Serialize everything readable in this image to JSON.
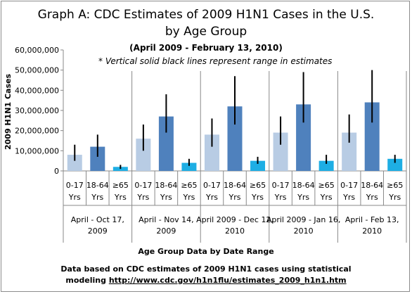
{
  "chart_data": {
    "type": "bar",
    "title": "Graph A: CDC Estimates of 2009 H1N1 Cases in the U.S.",
    "title_line2": "by Age Group",
    "subtitle": "(April 2009 - February 13, 2010)",
    "note": "* Vertical solid black lines represent range in estimates",
    "ylabel": "2009 H1N1 Cases",
    "xlabel": "Age Group Data by Date Range",
    "ylim": [
      0,
      60000000
    ],
    "yticks": [
      "0",
      "10,000,000",
      "20,000,000",
      "30,000,000",
      "40,000,000",
      "50,000,000",
      "60,000,000"
    ],
    "group_labels": [
      "April - Oct 17, 2009",
      "April - Nov 14, 2009",
      "April 2009 - Dec 12, 2010",
      "April 2009 - Jan 16, 2010",
      "April - Feb 13, 2010"
    ],
    "category_labels": [
      {
        "line1": "0-17",
        "line2": "Yrs"
      },
      {
        "line1": "18-64",
        "line2": "Yrs"
      },
      {
        "line1": "≥65",
        "line2": "Yrs"
      }
    ],
    "category_colors": [
      "#b8cce4",
      "#4f81bd",
      "#1eaee4"
    ],
    "values": [
      [
        8000000,
        12000000,
        2000000
      ],
      [
        16000000,
        27000000,
        4000000
      ],
      [
        18000000,
        32000000,
        5000000
      ],
      [
        19000000,
        33000000,
        5000000
      ],
      [
        19000000,
        34000000,
        6000000
      ]
    ],
    "ranges": [
      [
        [
          5000000,
          13000000
        ],
        [
          7000000,
          18000000
        ],
        [
          1000000,
          3000000
        ]
      ],
      [
        [
          10000000,
          23000000
        ],
        [
          19000000,
          38000000
        ],
        [
          2500000,
          6000000
        ]
      ],
      [
        [
          12000000,
          26000000
        ],
        [
          23000000,
          47000000
        ],
        [
          3500000,
          7000000
        ]
      ],
      [
        [
          13000000,
          27000000
        ],
        [
          24000000,
          49000000
        ],
        [
          3500000,
          8000000
        ]
      ],
      [
        [
          14000000,
          28000000
        ],
        [
          24000000,
          50000000
        ],
        [
          4000000,
          8000000
        ]
      ]
    ],
    "grid": false,
    "legend": "none"
  },
  "footnote": {
    "text": "Data based on CDC estimates of 2009 H1N1 cases using statistical modeling",
    "line1": "Data based on CDC estimates of 2009 H1N1 cases  using statistical",
    "line2_prefix": "modeling ",
    "link": "http://www.cdc.gov/h1n1flu/estimates_2009_h1n1.htm"
  }
}
